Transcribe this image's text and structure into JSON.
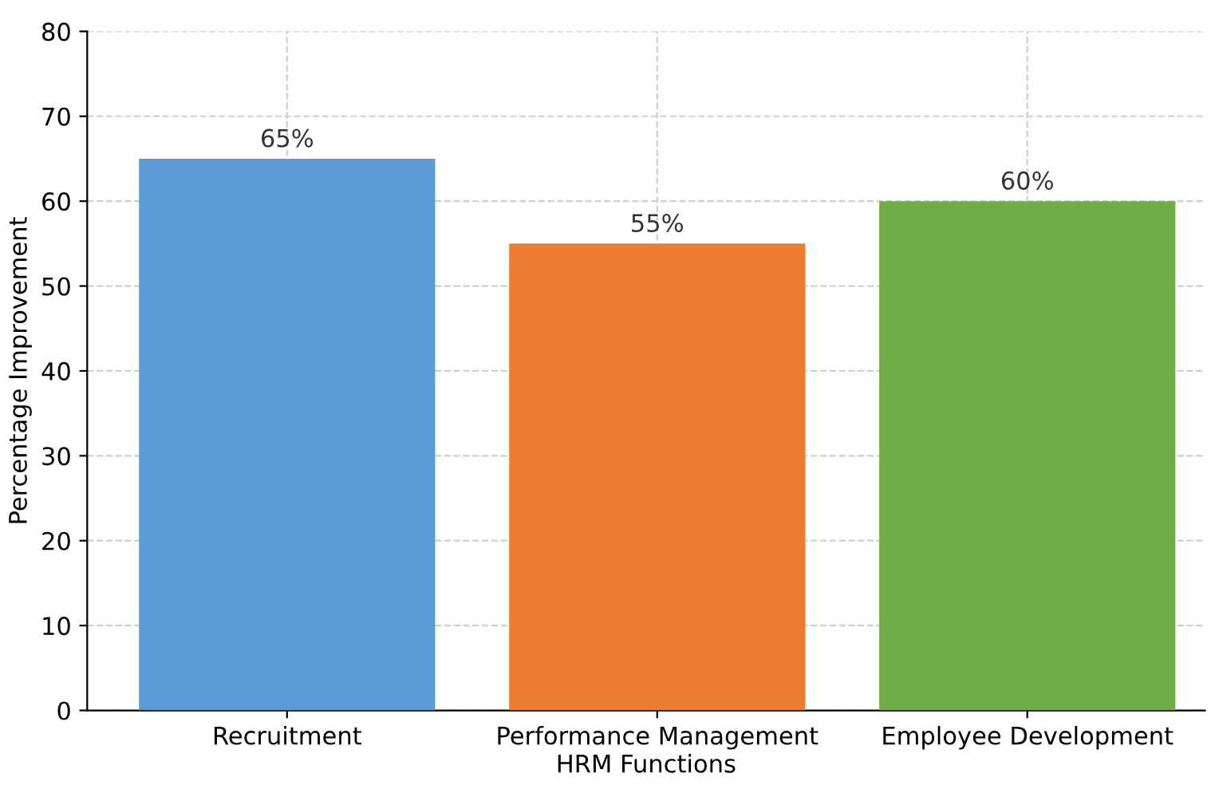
{
  "chart_data": {
    "type": "bar",
    "xlabel": "HRM Functions",
    "ylabel": "Percentage Improvement",
    "categories": [
      "Recruitment",
      "Performance Management",
      "Employee Development"
    ],
    "values": [
      65,
      55,
      60
    ],
    "colors": [
      "#5b9bd5",
      "#ed7d31",
      "#70ad47"
    ],
    "value_labels": [
      "65%",
      "55%",
      "60%"
    ],
    "ylim": [
      0,
      80
    ],
    "yticks": [
      0,
      10,
      20,
      30,
      40,
      50,
      60,
      70,
      80
    ],
    "grid": true
  }
}
